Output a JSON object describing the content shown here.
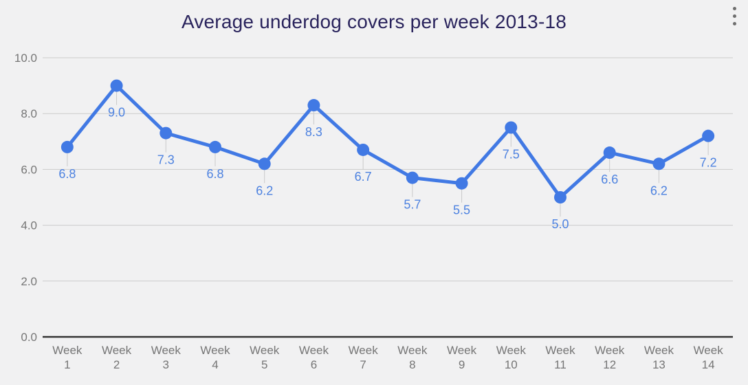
{
  "header": {
    "title": "Average underdog covers per week 2013-18",
    "menu_icon": "kebab-vertical-menu"
  },
  "chart_data": {
    "type": "line",
    "title": "Average underdog covers per week 2013-18",
    "categories": [
      "Week 1",
      "Week 2",
      "Week 3",
      "Week 4",
      "Week 5",
      "Week 6",
      "Week 7",
      "Week 8",
      "Week 9",
      "Week 10",
      "Week 11",
      "Week 12",
      "Week 13",
      "Week 14"
    ],
    "values": [
      6.8,
      9.0,
      7.3,
      6.8,
      6.2,
      8.3,
      6.7,
      5.7,
      5.5,
      7.5,
      5.0,
      6.6,
      6.2,
      7.2
    ],
    "point_labels": [
      "6.8",
      "9.0",
      "7.3",
      "6.8",
      "6.2",
      "8.3",
      "6.7",
      "5.7",
      "5.5",
      "7.5",
      "5.0",
      "6.6",
      "6.2",
      "7.2"
    ],
    "y_ticks": [
      "10.0",
      "8.0",
      "6.0",
      "4.0",
      "2.0",
      "0.0"
    ],
    "ylim": [
      0,
      10
    ],
    "xlabel": "",
    "ylabel": "",
    "grid": true,
    "legend": "none",
    "colors": {
      "series": "#4179e4",
      "point_label": "#4d82e0",
      "axis_text": "#757575",
      "gridline": "#cbcbcb",
      "axis_line": "#333333",
      "stem": "#c9c9c9",
      "background": "#f1f1f2",
      "title": "#29235c"
    }
  }
}
